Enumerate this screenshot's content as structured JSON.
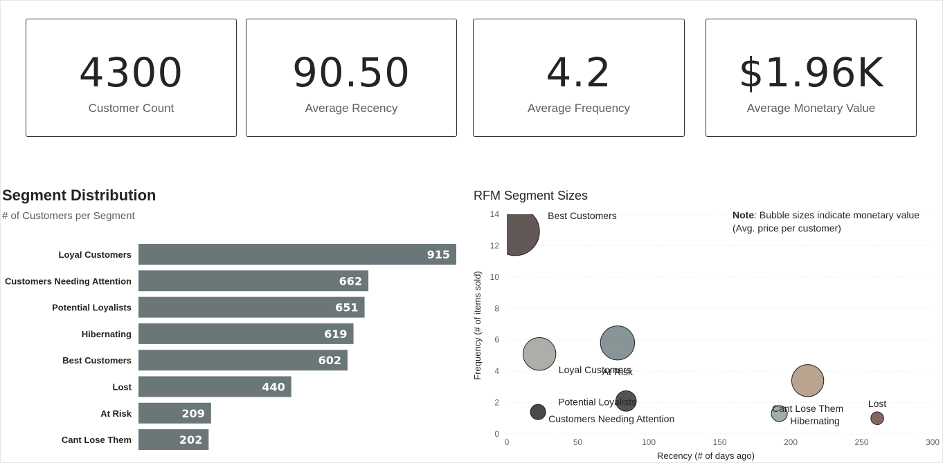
{
  "kpis": [
    {
      "value": "4300",
      "label": "Customer Count"
    },
    {
      "value": "90.50",
      "label": "Average Recency"
    },
    {
      "value": "4.2",
      "label": "Average Frequency"
    },
    {
      "value": "$1.96K",
      "label": "Average Monetary Value"
    }
  ],
  "segment_panel": {
    "title": "Segment Distribution",
    "subtitle": "# of Customers per Segment"
  },
  "rfm_panel": {
    "title": "RFM Segment Sizes",
    "note_bold": "Note",
    "note_text": ": Bubble sizes indicate monetary value (Avg. price per customer)"
  },
  "colors": {
    "bar": "#6b7678",
    "bar_label": "#ffffff",
    "gridline": "#e1e1e1"
  },
  "chart_data": [
    {
      "type": "bar",
      "orientation": "horizontal",
      "categories": [
        "Loyal Customers",
        "Customers Needing Attention",
        "Potential Loyalists",
        "Hibernating",
        "Best Customers",
        "Lost",
        "At Risk",
        "Cant Lose Them"
      ],
      "values": [
        915,
        662,
        651,
        619,
        602,
        440,
        209,
        202
      ],
      "title": "Segment Distribution",
      "subtitle": "# of Customers per Segment",
      "data_labels": true
    },
    {
      "type": "scatter",
      "bubble": true,
      "title": "RFM Segment Sizes",
      "xlabel": "Recency (# of days ago)",
      "ylabel": "Frequency (# of items sold)",
      "xlim": [
        0,
        300
      ],
      "ylim": [
        0,
        14
      ],
      "xticks": [
        0,
        50,
        100,
        150,
        200,
        250,
        300
      ],
      "yticks": [
        0,
        2,
        4,
        6,
        8,
        10,
        12,
        14
      ],
      "grid": "horizontal dotted",
      "points": [
        {
          "label": "Best Customers",
          "x": 6,
          "y": 12.9,
          "size": 5.0,
          "color": "#554a47",
          "label_pos": "right"
        },
        {
          "label": "Loyal Customers",
          "x": 23,
          "y": 5.1,
          "size": 2.3,
          "color": "#a8a6a3",
          "label_pos": "right-below"
        },
        {
          "label": "At Risk",
          "x": 78,
          "y": 5.8,
          "size": 2.5,
          "color": "#7e8c8e",
          "label_pos": "below"
        },
        {
          "label": "Potential Loyalists",
          "x": 84,
          "y": 2.1,
          "size": 0.9,
          "color": "#40474a",
          "label_pos": "left"
        },
        {
          "label": "Customers Needing Attention",
          "x": 22,
          "y": 1.4,
          "size": 0.5,
          "color": "#363b3d",
          "label_pos": "right-below"
        },
        {
          "label": "Cant Lose Them",
          "x": 212,
          "y": 3.4,
          "size": 2.2,
          "color": "#b49c85",
          "label_pos": "below"
        },
        {
          "label": "Hibernating",
          "x": 192,
          "y": 1.3,
          "size": 0.55,
          "color": "#9aa5a7",
          "label_pos": "right-below"
        },
        {
          "label": "Lost",
          "x": 261,
          "y": 1.0,
          "size": 0.35,
          "color": "#7a5a56",
          "label_pos": "above"
        }
      ]
    }
  ]
}
